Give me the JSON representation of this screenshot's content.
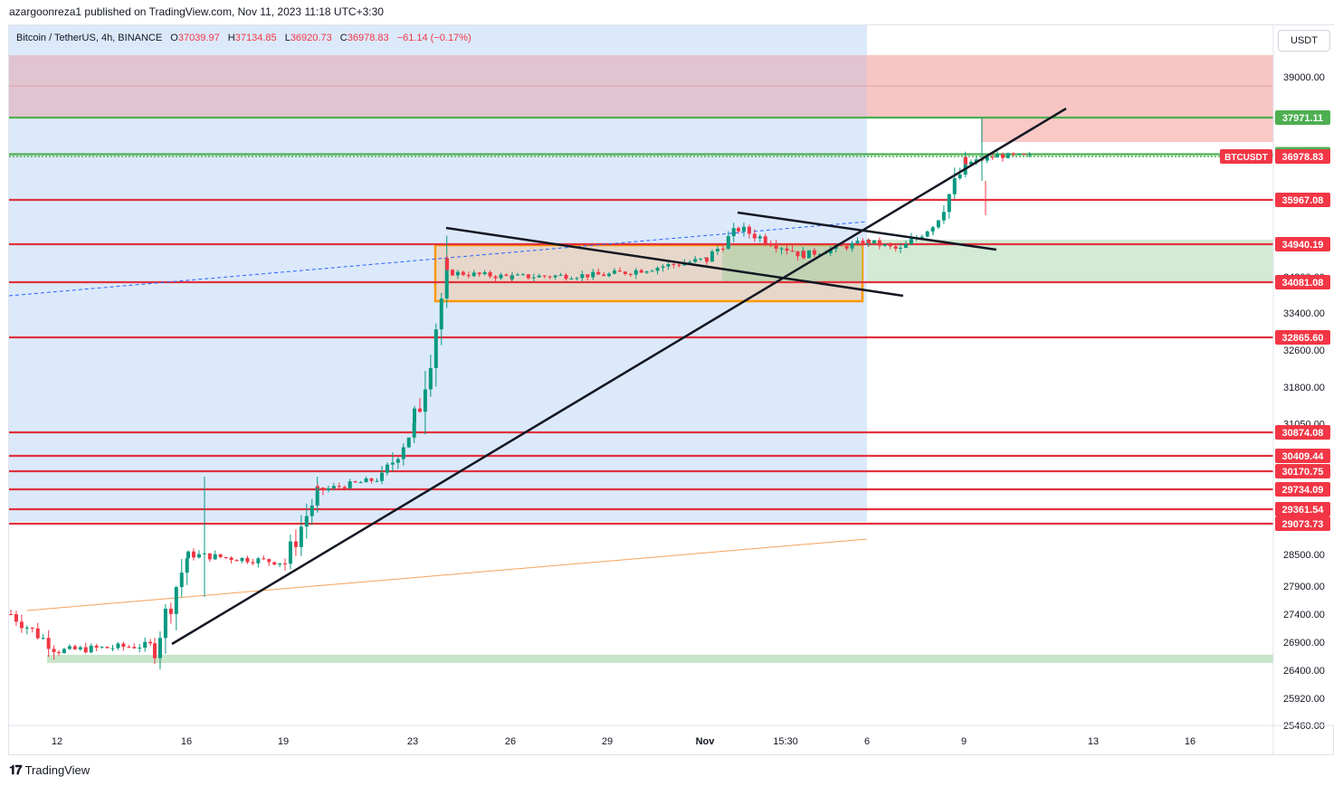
{
  "header": {
    "published_by": "azargoonreza1 published on TradingView.com, Nov 11, 2023 11:18 UTC+3:30"
  },
  "legend": {
    "symbol": "Bitcoin / TetherUS, 4h, BINANCE",
    "o_label": "O",
    "o": "37039.97",
    "h_label": "H",
    "h": "37134.85",
    "l_label": "L",
    "l": "36920.73",
    "c_label": "C",
    "c": "36978.83",
    "change": "−61.14 (−0.17%)"
  },
  "currency_button": "USDT",
  "footer": {
    "brand": "TradingView"
  },
  "colors": {
    "up": "#089981",
    "down": "#f23645",
    "level_line": "#e0323e",
    "green_line": "#4caf50",
    "blue_zone": "#dce9fb",
    "red_zone": "#f7c6c4",
    "green_zone": "#c8e6c9",
    "orange_box": "#ff9800"
  },
  "chart_data": {
    "type": "candlestick",
    "symbol": "BTCUSDT",
    "timeframe": "4h",
    "ylim": [
      25300,
      39600
    ],
    "x_ticks": [
      "12",
      "16",
      "19",
      "23",
      "26",
      "29",
      "Nov",
      "15:30",
      "6",
      "9",
      "13",
      "16"
    ],
    "y_ticks": [
      39000.0,
      34200.0,
      33400.0,
      32600.0,
      31800.0,
      31050.0,
      28500.0,
      27900.0,
      27400.0,
      26900.0,
      26400.0,
      25920.0,
      25460.0
    ],
    "price_labels": [
      {
        "value": 37971.11,
        "text": "37971.11",
        "color": "#4caf50"
      },
      {
        "value": 37036.29,
        "text": "37036.29",
        "color": "#4caf50"
      },
      {
        "value": 36978.83,
        "text": "36978.83",
        "color": "#f23645",
        "tag": "BTCUSDT"
      },
      {
        "value": 35967.08,
        "text": "35967.08",
        "color": "#f23645"
      },
      {
        "value": 34940.19,
        "text": "34940.19",
        "color": "#f23645"
      },
      {
        "value": 34081.08,
        "text": "34081.08",
        "color": "#f23645"
      },
      {
        "value": 32865.6,
        "text": "32865.60",
        "color": "#f23645"
      },
      {
        "value": 30874.08,
        "text": "30874.08",
        "color": "#f23645"
      },
      {
        "value": 30409.44,
        "text": "30409.44",
        "color": "#f23645"
      },
      {
        "value": 30170.75,
        "text": "30170.75",
        "color": "#f23645"
      },
      {
        "value": 29734.09,
        "text": "29734.09",
        "color": "#f23645"
      },
      {
        "value": 29361.54,
        "text": "29361.54",
        "color": "#f23645"
      },
      {
        "value": 29073.73,
        "text": "29073.73",
        "color": "#f23645"
      }
    ],
    "closes_key_points": [
      {
        "date": "Oct 11",
        "close": 27400
      },
      {
        "date": "Oct 12",
        "close": 26750
      },
      {
        "date": "Oct 15",
        "close": 26850
      },
      {
        "date": "Oct 16",
        "close": 28500
      },
      {
        "date": "Oct 19",
        "close": 28350
      },
      {
        "date": "Oct 20",
        "close": 29700
      },
      {
        "date": "Oct 22",
        "close": 30000
      },
      {
        "date": "Oct 23",
        "close": 31000
      },
      {
        "date": "Oct 24",
        "close": 34300
      },
      {
        "date": "Oct 26",
        "close": 34200
      },
      {
        "date": "Oct 29",
        "close": 34250
      },
      {
        "date": "Nov 1",
        "close": 34600
      },
      {
        "date": "Nov 2",
        "close": 35300
      },
      {
        "date": "Nov 4",
        "close": 34700
      },
      {
        "date": "Nov 6",
        "close": 35000
      },
      {
        "date": "Nov 7",
        "close": 34800
      },
      {
        "date": "Nov 8",
        "close": 35400
      },
      {
        "date": "Nov 9",
        "close": 36800
      },
      {
        "date": "Nov 10",
        "close": 37000
      },
      {
        "date": "Nov 11",
        "close": 36978.83
      }
    ]
  }
}
